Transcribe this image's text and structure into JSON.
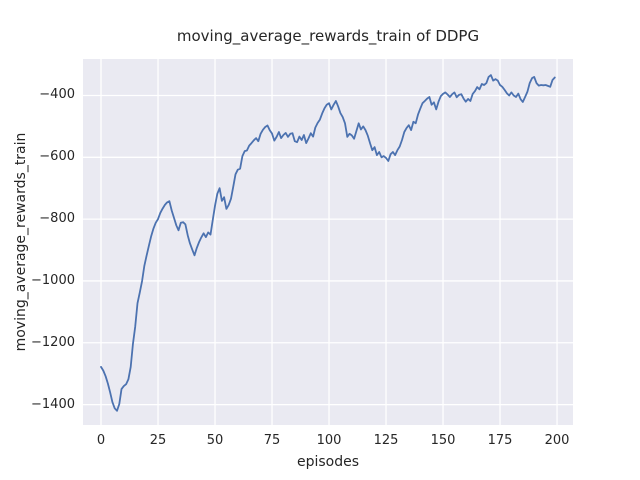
{
  "chart_data": {
    "type": "line",
    "title": "moving_average_rewards_train of DDPG",
    "xlabel": "episodes",
    "ylabel": "moving_average_rewards_train",
    "grid": true,
    "legend": null,
    "x_mode": "index",
    "xlim": [
      -7.9,
      207.0
    ],
    "ylim": [
      -1466,
      -282
    ],
    "x_tick_values": [
      0,
      25,
      50,
      75,
      100,
      125,
      150,
      175,
      200
    ],
    "x_tick_labels": [
      "0",
      "25",
      "50",
      "75",
      "100",
      "125",
      "150",
      "175",
      "200"
    ],
    "y_tick_values": [
      -400,
      -600,
      -800,
      -1000,
      -1200,
      -1400
    ],
    "y_tick_labels": [
      "−400",
      "−600",
      "−800",
      "−1000",
      "−1200",
      "−1400"
    ],
    "colors": {
      "figure_bg": "#ffffff",
      "plot_bg": "#eaeaf2",
      "grid": "#ffffff",
      "line": "#4c72b0",
      "text": "#262626"
    },
    "series": [
      {
        "name": "moving_average_rewards_train",
        "values": [
          -1278,
          -1290,
          -1308,
          -1332,
          -1360,
          -1392,
          -1412,
          -1420,
          -1398,
          -1350,
          -1340,
          -1334,
          -1318,
          -1278,
          -1205,
          -1148,
          -1072,
          -1037,
          -1000,
          -952,
          -918,
          -886,
          -855,
          -830,
          -812,
          -800,
          -780,
          -766,
          -754,
          -746,
          -742,
          -772,
          -796,
          -820,
          -836,
          -812,
          -810,
          -817,
          -852,
          -878,
          -898,
          -917,
          -893,
          -874,
          -859,
          -846,
          -858,
          -843,
          -850,
          -804,
          -757,
          -718,
          -700,
          -741,
          -729,
          -767,
          -754,
          -734,
          -694,
          -655,
          -640,
          -637,
          -596,
          -580,
          -578,
          -562,
          -554,
          -545,
          -538,
          -548,
          -524,
          -511,
          -502,
          -497,
          -512,
          -523,
          -546,
          -534,
          -518,
          -538,
          -528,
          -521,
          -534,
          -524,
          -522,
          -548,
          -551,
          -533,
          -544,
          -528,
          -554,
          -539,
          -522,
          -533,
          -504,
          -489,
          -478,
          -458,
          -441,
          -430,
          -425,
          -445,
          -430,
          -418,
          -435,
          -457,
          -470,
          -490,
          -534,
          -524,
          -529,
          -540,
          -515,
          -490,
          -510,
          -500,
          -512,
          -530,
          -555,
          -577,
          -567,
          -593,
          -583,
          -600,
          -596,
          -602,
          -612,
          -590,
          -583,
          -593,
          -577,
          -565,
          -544,
          -518,
          -505,
          -496,
          -512,
          -485,
          -490,
          -462,
          -443,
          -425,
          -418,
          -410,
          -405,
          -430,
          -422,
          -445,
          -420,
          -402,
          -395,
          -390,
          -397,
          -405,
          -396,
          -390,
          -406,
          -398,
          -396,
          -410,
          -420,
          -411,
          -418,
          -395,
          -386,
          -373,
          -380,
          -363,
          -366,
          -360,
          -340,
          -334,
          -352,
          -347,
          -352,
          -366,
          -372,
          -382,
          -393,
          -400,
          -390,
          -400,
          -405,
          -394,
          -412,
          -421,
          -405,
          -388,
          -360,
          -344,
          -340,
          -360,
          -368,
          -366,
          -367,
          -366,
          -369,
          -372,
          -350,
          -342
        ]
      }
    ]
  }
}
